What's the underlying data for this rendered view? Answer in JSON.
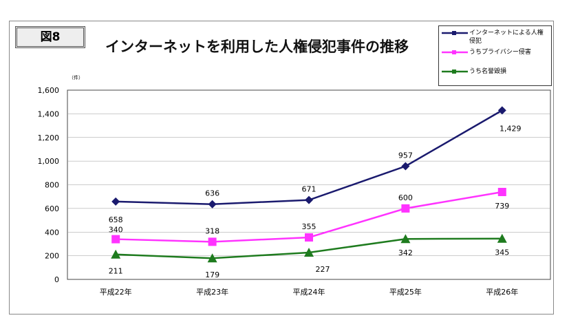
{
  "figure_label": "図8",
  "chart_data": {
    "type": "line",
    "title": "インターネットを利用した人権侵犯事件の推移",
    "ylabel": "（件）",
    "categories": [
      "平成22年",
      "平成23年",
      "平成24年",
      "平成25年",
      "平成26年"
    ],
    "ylim": [
      0,
      1600
    ],
    "yticks": [
      "0",
      "200",
      "400",
      "600",
      "800",
      "1,000",
      "1,200",
      "1,400",
      "1,600"
    ],
    "grid": true,
    "legend_position": "top-right",
    "series": [
      {
        "name": "インターネットによる人権侵犯",
        "values": [
          658,
          636,
          671,
          957,
          1429
        ],
        "labels": [
          "658",
          "636",
          "671",
          "957",
          "1,429"
        ],
        "color": "#1a1a6e",
        "marker": "diamond"
      },
      {
        "name": "うちプライバシー侵害",
        "values": [
          340,
          318,
          355,
          600,
          739
        ],
        "labels": [
          "340",
          "318",
          "355",
          "600",
          "739"
        ],
        "color": "#ff33ff",
        "marker": "square"
      },
      {
        "name": "うち名誉毀損",
        "values": [
          211,
          179,
          227,
          342,
          345
        ],
        "labels": [
          "211",
          "179",
          "227",
          "342",
          "345"
        ],
        "color": "#1e7b1e",
        "marker": "triangle"
      }
    ]
  }
}
